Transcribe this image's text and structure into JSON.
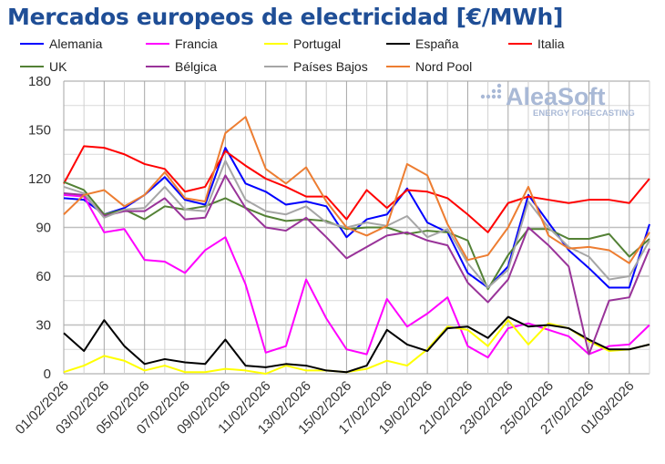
{
  "chart_data": {
    "type": "line",
    "title": "Mercados europeos de electricidad [€/MWh]",
    "ylim": [
      0,
      180
    ],
    "yticks": [
      0,
      30,
      60,
      90,
      120,
      150,
      180
    ],
    "grid": true,
    "legend": "top",
    "watermark": {
      "brand": "AleaSoft",
      "tagline": "ENERGY FORECASTING"
    },
    "x": [
      "01/02/2026",
      "02/02/2026",
      "03/02/2026",
      "04/02/2026",
      "05/02/2026",
      "06/02/2026",
      "07/02/2026",
      "08/02/2026",
      "09/02/2026",
      "10/02/2026",
      "11/02/2026",
      "12/02/2026",
      "13/02/2026",
      "14/02/2026",
      "15/02/2026",
      "16/02/2026",
      "17/02/2026",
      "18/02/2026",
      "19/02/2026",
      "20/02/2026",
      "21/02/2026",
      "22/02/2026",
      "23/02/2026",
      "24/02/2026",
      "25/02/2026",
      "26/02/2026",
      "27/02/2026",
      "28/02/2026",
      "01/03/2026",
      "02/03/2026"
    ],
    "xticklabels": [
      "01/02/2026",
      "03/02/2026",
      "05/02/2026",
      "07/02/2026",
      "09/02/2026",
      "11/02/2026",
      "13/02/2026",
      "15/02/2026",
      "17/02/2026",
      "19/02/2026",
      "21/02/2026",
      "23/02/2026",
      "25/02/2026",
      "27/02/2026",
      "01/03/2026"
    ],
    "series": [
      {
        "name": "Alemania",
        "color": "#0000ff",
        "values": [
          108,
          107,
          98,
          102,
          110,
          121,
          107,
          104,
          139,
          117,
          112,
          104,
          106,
          103,
          84,
          95,
          98,
          114,
          93,
          87,
          62,
          53,
          66,
          110,
          93,
          76,
          65,
          53,
          53,
          92
        ]
      },
      {
        "name": "Francia",
        "color": "#ff00ff",
        "values": [
          110,
          109,
          87,
          89,
          70,
          69,
          62,
          76,
          84,
          55,
          13,
          17,
          58,
          34,
          15,
          12,
          46,
          29,
          37,
          47,
          17,
          10,
          28,
          31,
          27,
          23,
          12,
          17,
          18,
          30
        ]
      },
      {
        "name": "Portugal",
        "color": "#ffff00",
        "values": [
          1,
          5,
          11,
          8,
          2,
          5,
          1,
          1,
          3,
          2,
          0,
          5,
          2,
          2,
          1,
          3,
          8,
          5,
          15,
          29,
          27,
          17,
          33,
          18,
          31,
          28,
          20,
          14,
          15,
          18
        ]
      },
      {
        "name": "España",
        "color": "#000000",
        "values": [
          25,
          14,
          33,
          17,
          6,
          9,
          7,
          6,
          21,
          5,
          4,
          6,
          5,
          2,
          1,
          5,
          27,
          18,
          14,
          28,
          29,
          22,
          35,
          29,
          30,
          28,
          21,
          15,
          15,
          18
        ]
      },
      {
        "name": "Italia",
        "color": "#ff0000",
        "values": [
          117,
          140,
          139,
          135,
          129,
          126,
          112,
          115,
          137,
          128,
          120,
          115,
          109,
          109,
          95,
          113,
          102,
          113,
          112,
          108,
          98,
          87,
          105,
          109,
          107,
          105,
          107,
          107,
          105,
          120
        ]
      },
      {
        "name": "UK",
        "color": "#538135",
        "values": [
          118,
          113,
          98,
          101,
          95,
          103,
          101,
          103,
          108,
          102,
          97,
          94,
          95,
          94,
          89,
          90,
          90,
          86,
          88,
          87,
          82,
          52,
          73,
          89,
          89,
          83,
          83,
          86,
          72,
          83
        ]
      },
      {
        "name": "Bélgica",
        "color": "#993399",
        "values": [
          111,
          110,
          97,
          100,
          100,
          108,
          95,
          96,
          122,
          102,
          90,
          88,
          96,
          84,
          71,
          78,
          85,
          87,
          82,
          79,
          56,
          44,
          58,
          90,
          79,
          66,
          12,
          45,
          47,
          77
        ]
      },
      {
        "name": "Países Bajos",
        "color": "#a6a6a6",
        "values": [
          115,
          111,
          96,
          101,
          102,
          115,
          101,
          100,
          131,
          107,
          100,
          98,
          103,
          93,
          90,
          93,
          91,
          97,
          84,
          89,
          68,
          53,
          64,
          106,
          90,
          78,
          72,
          58,
          60,
          82
        ]
      },
      {
        "name": "Nord Pool",
        "color": "#ed7d31",
        "values": [
          98,
          110,
          113,
          103,
          110,
          124,
          108,
          106,
          148,
          158,
          126,
          117,
          127,
          106,
          90,
          85,
          91,
          129,
          122,
          92,
          70,
          73,
          90,
          115,
          85,
          77,
          78,
          76,
          68,
          87
        ]
      }
    ]
  }
}
